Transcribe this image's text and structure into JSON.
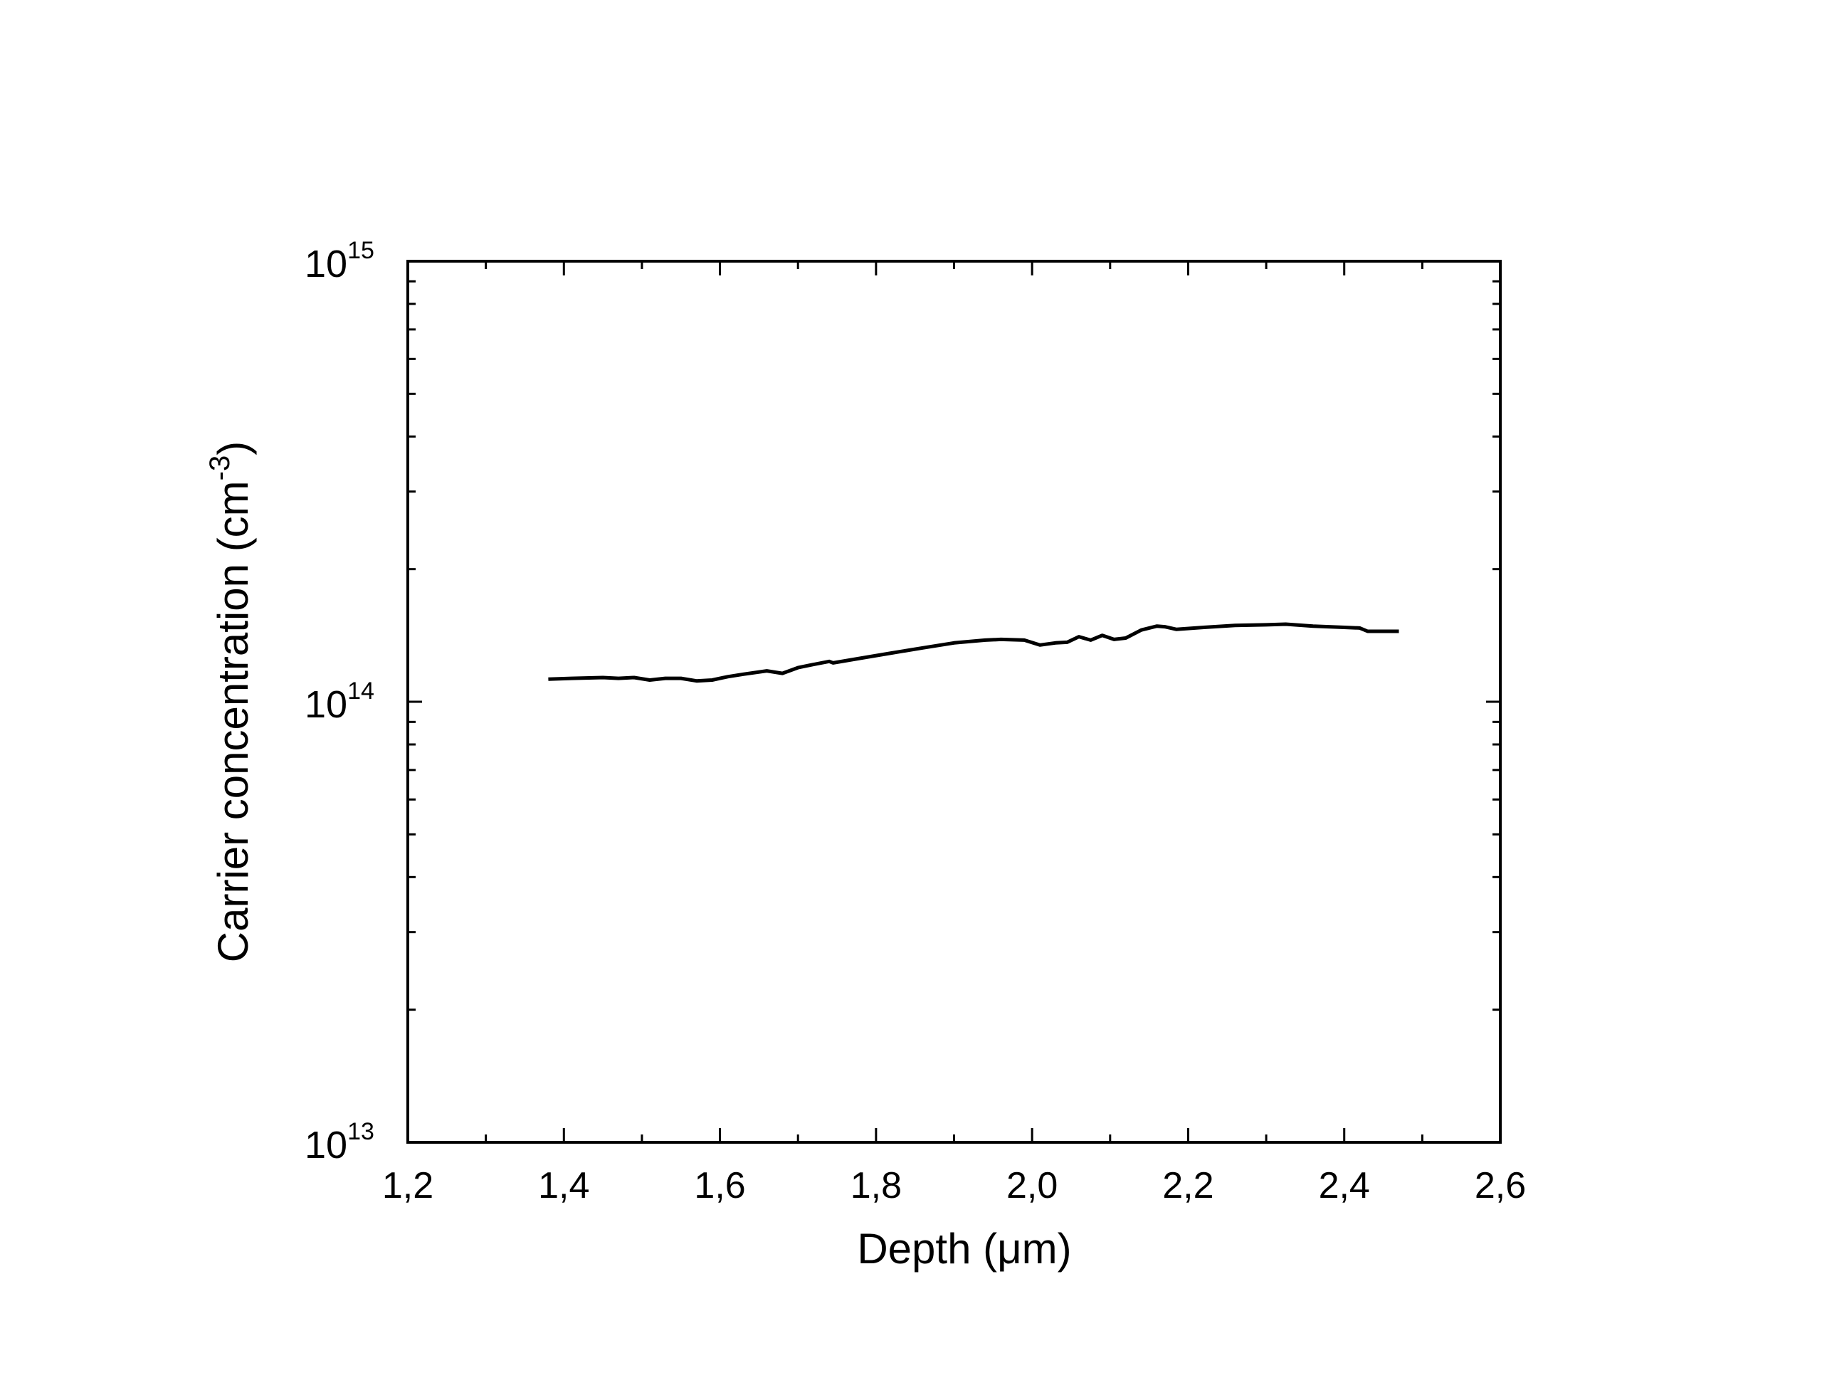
{
  "chart_data": {
    "type": "line",
    "xlabel": "Depth (μm)",
    "ylabel": "Carrier concentration (cm",
    "ylabel_superscript": "-3",
    "ylabel_suffix": ")",
    "xlim": [
      1.2,
      2.6
    ],
    "ylim": [
      10000000000000.0,
      1000000000000000.0
    ],
    "yscale": "log",
    "grid": false,
    "legend": "none",
    "x_ticks": [
      {
        "value": 1.2,
        "label": "1,2"
      },
      {
        "value": 1.4,
        "label": "1,4"
      },
      {
        "value": 1.6,
        "label": "1,6"
      },
      {
        "value": 1.8,
        "label": "1,8"
      },
      {
        "value": 2.0,
        "label": "2,0"
      },
      {
        "value": 2.2,
        "label": "2,2"
      },
      {
        "value": 2.4,
        "label": "2,4"
      },
      {
        "value": 2.6,
        "label": "2,6"
      }
    ],
    "y_ticks": [
      {
        "value": 10000000000000.0,
        "base": "10",
        "exponent": "13"
      },
      {
        "value": 100000000000000.0,
        "base": "10",
        "exponent": "14"
      },
      {
        "value": 1000000000000000.0,
        "base": "10",
        "exponent": "15"
      }
    ],
    "series": [
      {
        "color": "#000000",
        "x": [
          1.38,
          1.41,
          1.45,
          1.47,
          1.49,
          1.51,
          1.53,
          1.55,
          1.57,
          1.59,
          1.61,
          1.63,
          1.66,
          1.68,
          1.7,
          1.72,
          1.74,
          1.745,
          1.78,
          1.82,
          1.86,
          1.9,
          1.94,
          1.96,
          1.99,
          2.01,
          2.03,
          2.045,
          2.06,
          2.075,
          2.09,
          2.105,
          2.12,
          2.14,
          2.16,
          2.17,
          2.185,
          2.22,
          2.26,
          2.3,
          2.325,
          2.36,
          2.4,
          2.42,
          2.43,
          2.47
        ],
        "y": [
          112500000000000.0,
          113000000000000.0,
          113500000000000.0,
          113000000000000.0,
          113500000000000.0,
          112000000000000.0,
          113000000000000.0,
          113000000000000.0,
          111500000000000.0,
          112000000000000.0,
          114000000000000.0,
          115500000000000.0,
          117500000000000.0,
          116000000000000.0,
          119500000000000.0,
          121500000000000.0,
          123500000000000.0,
          122500000000000.0,
          125500000000000.0,
          129000000000000.0,
          132500000000000.0,
          136000000000000.0,
          138000000000000.0,
          138500000000000.0,
          138000000000000.0,
          134500000000000.0,
          136000000000000.0,
          136500000000000.0,
          140500000000000.0,
          138000000000000.0,
          141500000000000.0,
          138500000000000.0,
          139500000000000.0,
          145500000000000.0,
          148500000000000.0,
          148000000000000.0,
          146000000000000.0,
          147500000000000.0,
          149000000000000.0,
          149500000000000.0,
          150000000000000.0,
          148500000000000.0,
          147500000000000.0,
          147000000000000.0,
          144500000000000.0,
          144500000000000.0
        ]
      }
    ]
  }
}
